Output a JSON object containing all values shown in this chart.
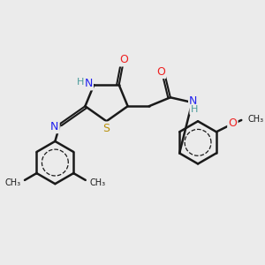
{
  "bg_color": "#ebebeb",
  "bond_color": "#1a1a1a",
  "bond_width": 1.8,
  "N_color": "#2020ee",
  "O_color": "#ee2020",
  "S_color": "#b8900a",
  "H_color": "#4a9a9a",
  "figsize": [
    3.0,
    3.0
  ],
  "dpi": 100,
  "xlim": [
    0,
    10
  ],
  "ylim": [
    0,
    10
  ]
}
